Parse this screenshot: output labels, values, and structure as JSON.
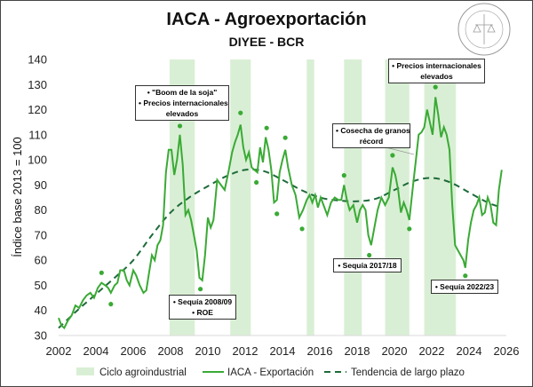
{
  "chart_data": {
    "type": "line",
    "title": "IACA - Agroexportación",
    "subtitle": "DIYEE - BCR",
    "ylabel": "Índice base 2013 = 100",
    "xlabel": "",
    "xlim": [
      2002,
      2026
    ],
    "ylim": [
      30,
      140
    ],
    "xticks": [
      "2002",
      "2004",
      "2006",
      "2008",
      "2010",
      "2012",
      "2014",
      "2016",
      "2018",
      "2020",
      "2022",
      "2024",
      "2026"
    ],
    "yticks": [
      "30",
      "40",
      "50",
      "60",
      "70",
      "80",
      "90",
      "100",
      "110",
      "120",
      "130",
      "140"
    ],
    "grid": false,
    "legend_position": "bottom",
    "legend": [
      "Ciclo agroindustrial",
      "IACA - Exportación",
      "Tendencia de largo plazo"
    ],
    "colors": {
      "cycle": "#d9efd5",
      "series": "#3aaa35",
      "trend": "#1e6b3a",
      "dots": "#3aaa35"
    },
    "cycles": [
      [
        2007.95,
        2009.3
      ],
      [
        2011.2,
        2012.3
      ],
      [
        2015.3,
        2015.7
      ],
      [
        2017.3,
        2018.25
      ],
      [
        2019.5,
        2020.8
      ],
      [
        2021.6,
        2023.3
      ]
    ],
    "series": {
      "name": "IACA - Exportación",
      "x": [
        2002.0,
        2002.15,
        2002.3,
        2002.5,
        2002.7,
        2002.9,
        2003.1,
        2003.3,
        2003.5,
        2003.7,
        2003.9,
        2004.1,
        2004.3,
        2004.5,
        2004.65,
        2004.8,
        2005.0,
        2005.15,
        2005.3,
        2005.5,
        2005.65,
        2005.8,
        2006.0,
        2006.15,
        2006.35,
        2006.55,
        2006.7,
        2006.85,
        2007.0,
        2007.15,
        2007.3,
        2007.45,
        2007.6,
        2007.75,
        2007.9,
        2008.05,
        2008.2,
        2008.35,
        2008.5,
        2008.65,
        2008.8,
        2008.95,
        2009.1,
        2009.25,
        2009.4,
        2009.55,
        2009.7,
        2009.85,
        2010.0,
        2010.15,
        2010.3,
        2010.5,
        2010.7,
        2010.9,
        2011.1,
        2011.3,
        2011.45,
        2011.6,
        2011.75,
        2011.9,
        2012.05,
        2012.2,
        2012.35,
        2012.5,
        2012.65,
        2012.8,
        2012.95,
        2013.1,
        2013.25,
        2013.4,
        2013.55,
        2013.7,
        2013.85,
        2014.0,
        2014.15,
        2014.3,
        2014.5,
        2014.7,
        2014.9,
        2015.1,
        2015.3,
        2015.45,
        2015.6,
        2015.75,
        2015.9,
        2016.05,
        2016.2,
        2016.4,
        2016.6,
        2016.8,
        2017.0,
        2017.15,
        2017.3,
        2017.45,
        2017.6,
        2017.8,
        2018.0,
        2018.15,
        2018.3,
        2018.45,
        2018.6,
        2018.75,
        2018.9,
        2019.1,
        2019.3,
        2019.5,
        2019.7,
        2019.9,
        2020.05,
        2020.2,
        2020.35,
        2020.5,
        2020.65,
        2020.8,
        2021.0,
        2021.15,
        2021.3,
        2021.45,
        2021.6,
        2021.75,
        2021.9,
        2022.05,
        2022.2,
        2022.35,
        2022.5,
        2022.65,
        2022.8,
        2022.95,
        2023.1,
        2023.25,
        2023.4,
        2023.55,
        2023.7,
        2023.8,
        2023.95,
        2024.1,
        2024.25,
        2024.4,
        2024.55,
        2024.7,
        2024.85,
        2025.0,
        2025.15,
        2025.3,
        2025.45,
        2025.6,
        2025.75
      ],
      "y": [
        37,
        34,
        33,
        36,
        38,
        42,
        41,
        44,
        46,
        47,
        45,
        49,
        51,
        50,
        49,
        47,
        50,
        51,
        56,
        56,
        52,
        50,
        56,
        54,
        50,
        47,
        48,
        55,
        62,
        60,
        66,
        68,
        74,
        95,
        104,
        104,
        94,
        100,
        110,
        98,
        78,
        80,
        76,
        70,
        64,
        53,
        52,
        62,
        77,
        73,
        76,
        92,
        90,
        88,
        95,
        103,
        107,
        110,
        114,
        105,
        100,
        103,
        97,
        96,
        95,
        105,
        99,
        109,
        104,
        96,
        83,
        84,
        95,
        100,
        104,
        97,
        90,
        86,
        77,
        80,
        84,
        86,
        83,
        86,
        81,
        85,
        82,
        78,
        83,
        85,
        84,
        84,
        90,
        84,
        80,
        82,
        75,
        80,
        82,
        80,
        70,
        66,
        72,
        80,
        85,
        82,
        85,
        97,
        94,
        88,
        79,
        83,
        80,
        76,
        90,
        100,
        110,
        111,
        113,
        120,
        115,
        110,
        125,
        118,
        109,
        113,
        110,
        104,
        82,
        66,
        64,
        62,
        60,
        57,
        68,
        75,
        80,
        82,
        85,
        78,
        79,
        85,
        82,
        75,
        74,
        88,
        96
      ]
    },
    "trend": {
      "name": "Tendencia de largo plazo",
      "x": [
        2002,
        2003,
        2004,
        2005,
        2006,
        2007,
        2008,
        2009,
        2010,
        2011,
        2012,
        2013,
        2014,
        2015,
        2016,
        2017,
        2018,
        2019,
        2020,
        2021,
        2022,
        2023,
        2024,
        2025,
        2025.75
      ],
      "y": [
        33,
        40,
        46.5,
        53,
        60,
        70,
        79,
        85,
        89.5,
        93.5,
        96,
        95.5,
        92,
        88,
        85,
        83.8,
        83.5,
        84.5,
        88,
        91.5,
        92.8,
        91,
        87,
        83,
        81
      ]
    },
    "dots": {
      "x": [
        2004.3,
        2004.8,
        2008.5,
        2009.6,
        2011.75,
        2012.6,
        2013.15,
        2013.7,
        2014.15,
        2015.05,
        2017.3,
        2018.65,
        2019.9,
        2020.8,
        2022.2,
        2023.8
      ],
      "y": [
        55,
        42.5,
        113.5,
        48.5,
        118.7,
        91,
        112.7,
        78.5,
        108.8,
        72.5,
        93.8,
        62,
        101.8,
        72.5,
        129,
        53.8
      ]
    },
    "annotations": [
      {
        "lines": [
          "• \"Boom de la soja\"",
          "• Precios internacionales",
          "elevados"
        ]
      },
      {
        "lines": [
          "• Sequía 2008/09",
          "• ROE"
        ]
      },
      {
        "lines": [
          "• Cosecha de granos",
          "récord"
        ]
      },
      {
        "lines": [
          "• Sequía 2017/18"
        ]
      },
      {
        "lines": [
          "• Precios internacionales",
          "elevados"
        ]
      },
      {
        "lines": [
          "• Sequía 2022/23"
        ]
      }
    ]
  },
  "logo_text": "BOLSA DE COMERCIO DE ROSARIO"
}
